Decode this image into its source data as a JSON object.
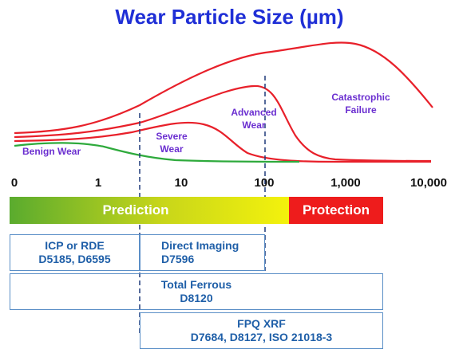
{
  "title": "Wear Particle Size (µm)",
  "colors": {
    "title": "#1f2fd6",
    "label": "#6b2fd0",
    "red_curve": "#e8202a",
    "green_curve": "#2eaa3c",
    "box_text": "#1f5fa8",
    "box_border": "#5b8fc7"
  },
  "chart_data": {
    "type": "line",
    "x_scale": "log",
    "x_ticks": [
      "0",
      "1",
      "10",
      "100",
      "1,000",
      "10,000"
    ],
    "regions": [
      {
        "label": "Benign Wear",
        "color": "#2eaa3c"
      },
      {
        "label": "Severe Wear",
        "color": "#e8202a"
      },
      {
        "label": "Advanced Wear",
        "color": "#e8202a"
      },
      {
        "label": "Catastrophic Failure",
        "color": "#e8202a"
      }
    ]
  },
  "bar": {
    "prediction": "Prediction",
    "protection": "Protection"
  },
  "methods": {
    "icp": {
      "line1": "ICP or RDE",
      "line2": "D5185, D6595"
    },
    "direct": {
      "line1": "Direct Imaging",
      "line2": "D7596"
    },
    "ferrous": {
      "line1": "Total Ferrous",
      "line2": "D8120"
    },
    "fpq": {
      "line1": "FPQ XRF",
      "line2": "D7684, D8127, ISO 21018-3"
    }
  }
}
